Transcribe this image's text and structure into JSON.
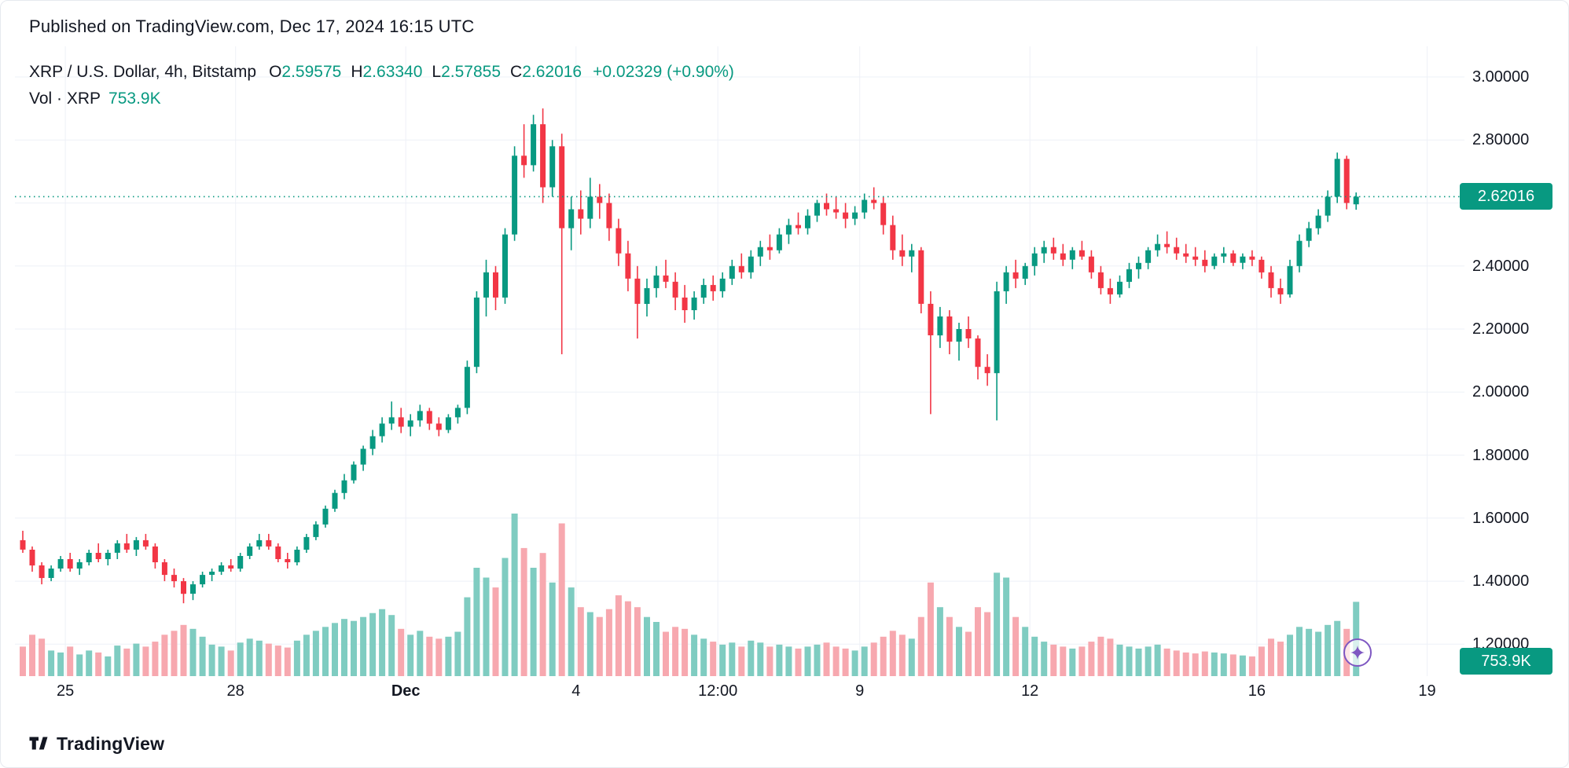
{
  "header": {
    "published_line": "Published on TradingView.com, Dec 17, 2024 16:15 UTC"
  },
  "legend": {
    "symbol": "XRP / U.S. Dollar, 4h, Bitstamp",
    "ohlc": [
      {
        "label": "O",
        "value": "2.59575"
      },
      {
        "label": "H",
        "value": "2.63340"
      },
      {
        "label": "L",
        "value": "2.57855"
      },
      {
        "label": "C",
        "value": "2.62016"
      }
    ],
    "change": "+0.02329 (+0.90%)",
    "volume_label": "Vol · XRP",
    "volume_value": "753.9K"
  },
  "price_badge": {
    "value": "2.62016"
  },
  "volume_badge": {
    "value": "753.9K"
  },
  "footer": {
    "brand": "TradingView"
  },
  "icons": {
    "tradingview_logo": "tv-mark",
    "sparkle_marker": "four-point-sparkle"
  },
  "colors": {
    "text": "#131722",
    "up": "#089981",
    "down": "#f23645",
    "volume_up": "#7fccc1",
    "volume_down": "#f7a8af",
    "grid": "#eef1f7",
    "purple": "#7e57c2"
  },
  "chart_data": {
    "type": "candlestick",
    "title": "XRP / U.S. Dollar, 4h, Bitstamp",
    "legend_ohlc": {
      "open": 2.59575,
      "high": 2.6334,
      "low": 2.57855,
      "close": 2.62016,
      "change": 0.02329,
      "change_pct": 0.9
    },
    "last_close": 2.62016,
    "current_volume_k": 753.9,
    "price_axis": {
      "labels": [
        {
          "text": "3.00000",
          "price": 3.0
        },
        {
          "text": "2.80000",
          "price": 2.8
        },
        {
          "text": "2.40000",
          "price": 2.4
        },
        {
          "text": "2.20000",
          "price": 2.2
        },
        {
          "text": "2.00000",
          "price": 2.0
        },
        {
          "text": "1.80000",
          "price": 1.8
        },
        {
          "text": "1.60000",
          "price": 1.6
        },
        {
          "text": "1.40000",
          "price": 1.4
        },
        {
          "text": "1.20000",
          "price": 1.2
        }
      ],
      "gridline_prices": [
        3.0,
        2.8,
        2.6,
        2.4,
        2.2,
        2.0,
        1.8,
        1.6,
        1.4,
        1.2
      ],
      "visible_range": [
        1.15,
        3.05
      ]
    },
    "time_axis": {
      "ticks": [
        {
          "label": "25",
          "index": 5,
          "bold": false
        },
        {
          "label": "28",
          "index": 23,
          "bold": false
        },
        {
          "label": "Dec",
          "index": 41,
          "bold": true
        },
        {
          "label": "4",
          "index": 59,
          "bold": false
        },
        {
          "label": "12:00",
          "index": 74,
          "bold": false
        },
        {
          "label": "9",
          "index": 89,
          "bold": false
        },
        {
          "label": "12",
          "index": 107,
          "bold": false
        },
        {
          "label": "16",
          "index": 131,
          "bold": false
        },
        {
          "label": "19",
          "index": 149,
          "bold": false
        }
      ]
    },
    "volume_axis": {
      "max_k": 1650
    },
    "candles_format": [
      "open",
      "high",
      "low",
      "close",
      "volume_k"
    ],
    "candles": [
      [
        1.53,
        1.56,
        1.49,
        1.5,
        300
      ],
      [
        1.5,
        1.51,
        1.43,
        1.45,
        420
      ],
      [
        1.45,
        1.46,
        1.39,
        1.41,
        380
      ],
      [
        1.41,
        1.45,
        1.4,
        1.44,
        260
      ],
      [
        1.44,
        1.48,
        1.43,
        1.47,
        240
      ],
      [
        1.47,
        1.49,
        1.43,
        1.44,
        300
      ],
      [
        1.44,
        1.47,
        1.42,
        1.46,
        220
      ],
      [
        1.46,
        1.5,
        1.45,
        1.49,
        260
      ],
      [
        1.49,
        1.52,
        1.46,
        1.47,
        240
      ],
      [
        1.47,
        1.5,
        1.45,
        1.49,
        200
      ],
      [
        1.49,
        1.53,
        1.47,
        1.52,
        310
      ],
      [
        1.52,
        1.55,
        1.49,
        1.5,
        280
      ],
      [
        1.5,
        1.54,
        1.48,
        1.53,
        330
      ],
      [
        1.53,
        1.55,
        1.5,
        1.51,
        300
      ],
      [
        1.51,
        1.52,
        1.44,
        1.46,
        350
      ],
      [
        1.46,
        1.47,
        1.4,
        1.42,
        420
      ],
      [
        1.42,
        1.44,
        1.38,
        1.4,
        460
      ],
      [
        1.4,
        1.41,
        1.33,
        1.36,
        520
      ],
      [
        1.36,
        1.4,
        1.34,
        1.39,
        480
      ],
      [
        1.39,
        1.43,
        1.38,
        1.42,
        400
      ],
      [
        1.42,
        1.44,
        1.4,
        1.43,
        320
      ],
      [
        1.43,
        1.46,
        1.42,
        1.45,
        300
      ],
      [
        1.45,
        1.47,
        1.43,
        1.44,
        260
      ],
      [
        1.44,
        1.49,
        1.43,
        1.48,
        340
      ],
      [
        1.48,
        1.52,
        1.47,
        1.51,
        380
      ],
      [
        1.51,
        1.55,
        1.5,
        1.53,
        360
      ],
      [
        1.53,
        1.55,
        1.5,
        1.51,
        330
      ],
      [
        1.51,
        1.52,
        1.46,
        1.47,
        310
      ],
      [
        1.47,
        1.49,
        1.44,
        1.46,
        290
      ],
      [
        1.46,
        1.51,
        1.45,
        1.5,
        360
      ],
      [
        1.5,
        1.55,
        1.49,
        1.54,
        420
      ],
      [
        1.54,
        1.59,
        1.53,
        1.58,
        460
      ],
      [
        1.58,
        1.64,
        1.57,
        1.63,
        500
      ],
      [
        1.63,
        1.69,
        1.62,
        1.68,
        540
      ],
      [
        1.68,
        1.74,
        1.66,
        1.72,
        580
      ],
      [
        1.72,
        1.78,
        1.71,
        1.77,
        560
      ],
      [
        1.77,
        1.83,
        1.75,
        1.82,
        600
      ],
      [
        1.82,
        1.88,
        1.8,
        1.86,
        640
      ],
      [
        1.86,
        1.92,
        1.84,
        1.9,
        680
      ],
      [
        1.9,
        1.97,
        1.88,
        1.92,
        620
      ],
      [
        1.92,
        1.95,
        1.87,
        1.89,
        480
      ],
      [
        1.89,
        1.93,
        1.86,
        1.91,
        420
      ],
      [
        1.91,
        1.96,
        1.89,
        1.94,
        460
      ],
      [
        1.94,
        1.95,
        1.88,
        1.9,
        400
      ],
      [
        1.9,
        1.92,
        1.86,
        1.88,
        380
      ],
      [
        1.88,
        1.93,
        1.87,
        1.92,
        400
      ],
      [
        1.92,
        1.96,
        1.9,
        1.95,
        450
      ],
      [
        1.95,
        2.1,
        1.93,
        2.08,
        800
      ],
      [
        2.08,
        2.32,
        2.06,
        2.3,
        1100
      ],
      [
        2.3,
        2.42,
        2.24,
        2.38,
        1000
      ],
      [
        2.38,
        2.4,
        2.26,
        2.3,
        900
      ],
      [
        2.3,
        2.52,
        2.28,
        2.5,
        1200
      ],
      [
        2.5,
        2.78,
        2.48,
        2.75,
        1650
      ],
      [
        2.75,
        2.85,
        2.68,
        2.72,
        1300
      ],
      [
        2.72,
        2.88,
        2.7,
        2.85,
        1100
      ],
      [
        2.85,
        2.9,
        2.6,
        2.65,
        1250
      ],
      [
        2.65,
        2.8,
        2.62,
        2.78,
        950
      ],
      [
        2.78,
        2.82,
        2.12,
        2.52,
        1550
      ],
      [
        2.52,
        2.62,
        2.45,
        2.58,
        900
      ],
      [
        2.58,
        2.64,
        2.5,
        2.55,
        700
      ],
      [
        2.55,
        2.68,
        2.52,
        2.62,
        650
      ],
      [
        2.62,
        2.66,
        2.55,
        2.6,
        600
      ],
      [
        2.6,
        2.63,
        2.48,
        2.52,
        680
      ],
      [
        2.52,
        2.55,
        2.4,
        2.44,
        820
      ],
      [
        2.44,
        2.48,
        2.32,
        2.36,
        760
      ],
      [
        2.36,
        2.4,
        2.17,
        2.28,
        700
      ],
      [
        2.28,
        2.36,
        2.24,
        2.33,
        600
      ],
      [
        2.33,
        2.4,
        2.3,
        2.37,
        550
      ],
      [
        2.37,
        2.42,
        2.33,
        2.35,
        450
      ],
      [
        2.35,
        2.38,
        2.26,
        2.3,
        500
      ],
      [
        2.3,
        2.34,
        2.22,
        2.26,
        480
      ],
      [
        2.26,
        2.32,
        2.23,
        2.3,
        420
      ],
      [
        2.3,
        2.36,
        2.28,
        2.34,
        380
      ],
      [
        2.34,
        2.37,
        2.29,
        2.32,
        350
      ],
      [
        2.32,
        2.38,
        2.3,
        2.36,
        320
      ],
      [
        2.36,
        2.42,
        2.34,
        2.4,
        340
      ],
      [
        2.4,
        2.44,
        2.36,
        2.38,
        300
      ],
      [
        2.38,
        2.45,
        2.36,
        2.43,
        360
      ],
      [
        2.43,
        2.48,
        2.4,
        2.46,
        340
      ],
      [
        2.46,
        2.5,
        2.42,
        2.45,
        300
      ],
      [
        2.45,
        2.52,
        2.44,
        2.5,
        320
      ],
      [
        2.5,
        2.55,
        2.47,
        2.53,
        300
      ],
      [
        2.53,
        2.57,
        2.5,
        2.52,
        280
      ],
      [
        2.52,
        2.58,
        2.5,
        2.56,
        300
      ],
      [
        2.56,
        2.61,
        2.54,
        2.6,
        320
      ],
      [
        2.6,
        2.63,
        2.56,
        2.58,
        340
      ],
      [
        2.58,
        2.62,
        2.55,
        2.57,
        300
      ],
      [
        2.57,
        2.6,
        2.52,
        2.55,
        280
      ],
      [
        2.55,
        2.59,
        2.53,
        2.57,
        260
      ],
      [
        2.57,
        2.63,
        2.55,
        2.61,
        300
      ],
      [
        2.61,
        2.65,
        2.58,
        2.6,
        340
      ],
      [
        2.6,
        2.62,
        2.5,
        2.53,
        400
      ],
      [
        2.53,
        2.56,
        2.42,
        2.45,
        460
      ],
      [
        2.45,
        2.5,
        2.4,
        2.43,
        420
      ],
      [
        2.43,
        2.47,
        2.38,
        2.45,
        380
      ],
      [
        2.45,
        2.46,
        2.25,
        2.28,
        600
      ],
      [
        2.28,
        2.32,
        1.93,
        2.18,
        950
      ],
      [
        2.18,
        2.27,
        2.14,
        2.24,
        700
      ],
      [
        2.24,
        2.26,
        2.12,
        2.16,
        600
      ],
      [
        2.16,
        2.22,
        2.1,
        2.2,
        500
      ],
      [
        2.2,
        2.24,
        2.14,
        2.17,
        450
      ],
      [
        2.17,
        2.18,
        2.04,
        2.08,
        700
      ],
      [
        2.08,
        2.12,
        2.02,
        2.06,
        650
      ],
      [
        2.06,
        2.35,
        1.91,
        2.32,
        1050
      ],
      [
        2.32,
        2.4,
        2.28,
        2.38,
        1000
      ],
      [
        2.38,
        2.42,
        2.33,
        2.36,
        600
      ],
      [
        2.36,
        2.41,
        2.34,
        2.4,
        500
      ],
      [
        2.4,
        2.46,
        2.37,
        2.44,
        400
      ],
      [
        2.44,
        2.48,
        2.41,
        2.46,
        350
      ],
      [
        2.46,
        2.49,
        2.42,
        2.44,
        320
      ],
      [
        2.44,
        2.47,
        2.4,
        2.42,
        300
      ],
      [
        2.42,
        2.46,
        2.39,
        2.45,
        280
      ],
      [
        2.45,
        2.48,
        2.42,
        2.43,
        300
      ],
      [
        2.43,
        2.45,
        2.36,
        2.38,
        350
      ],
      [
        2.38,
        2.4,
        2.31,
        2.33,
        400
      ],
      [
        2.33,
        2.36,
        2.28,
        2.31,
        380
      ],
      [
        2.31,
        2.37,
        2.3,
        2.35,
        320
      ],
      [
        2.35,
        2.41,
        2.33,
        2.39,
        300
      ],
      [
        2.39,
        2.43,
        2.36,
        2.41,
        280
      ],
      [
        2.41,
        2.46,
        2.39,
        2.45,
        300
      ],
      [
        2.45,
        2.5,
        2.43,
        2.47,
        320
      ],
      [
        2.47,
        2.51,
        2.44,
        2.46,
        280
      ],
      [
        2.46,
        2.49,
        2.42,
        2.44,
        260
      ],
      [
        2.44,
        2.47,
        2.41,
        2.43,
        240
      ],
      [
        2.43,
        2.46,
        2.4,
        2.42,
        230
      ],
      [
        2.42,
        2.45,
        2.38,
        2.4,
        250
      ],
      [
        2.4,
        2.44,
        2.39,
        2.43,
        240
      ],
      [
        2.43,
        2.46,
        2.41,
        2.44,
        230
      ],
      [
        2.44,
        2.45,
        2.4,
        2.41,
        220
      ],
      [
        2.41,
        2.44,
        2.39,
        2.43,
        210
      ],
      [
        2.43,
        2.45,
        2.4,
        2.42,
        200
      ],
      [
        2.42,
        2.43,
        2.36,
        2.38,
        300
      ],
      [
        2.38,
        2.4,
        2.3,
        2.33,
        380
      ],
      [
        2.33,
        2.36,
        2.28,
        2.31,
        350
      ],
      [
        2.31,
        2.42,
        2.3,
        2.4,
        420
      ],
      [
        2.4,
        2.5,
        2.38,
        2.48,
        500
      ],
      [
        2.48,
        2.54,
        2.46,
        2.52,
        480
      ],
      [
        2.52,
        2.58,
        2.5,
        2.56,
        450
      ],
      [
        2.56,
        2.64,
        2.54,
        2.62,
        520
      ],
      [
        2.62,
        2.76,
        2.6,
        2.74,
        560
      ],
      [
        2.74,
        2.75,
        2.58,
        2.6,
        480
      ],
      [
        2.59575,
        2.6334,
        2.57855,
        2.62016,
        754
      ]
    ]
  }
}
